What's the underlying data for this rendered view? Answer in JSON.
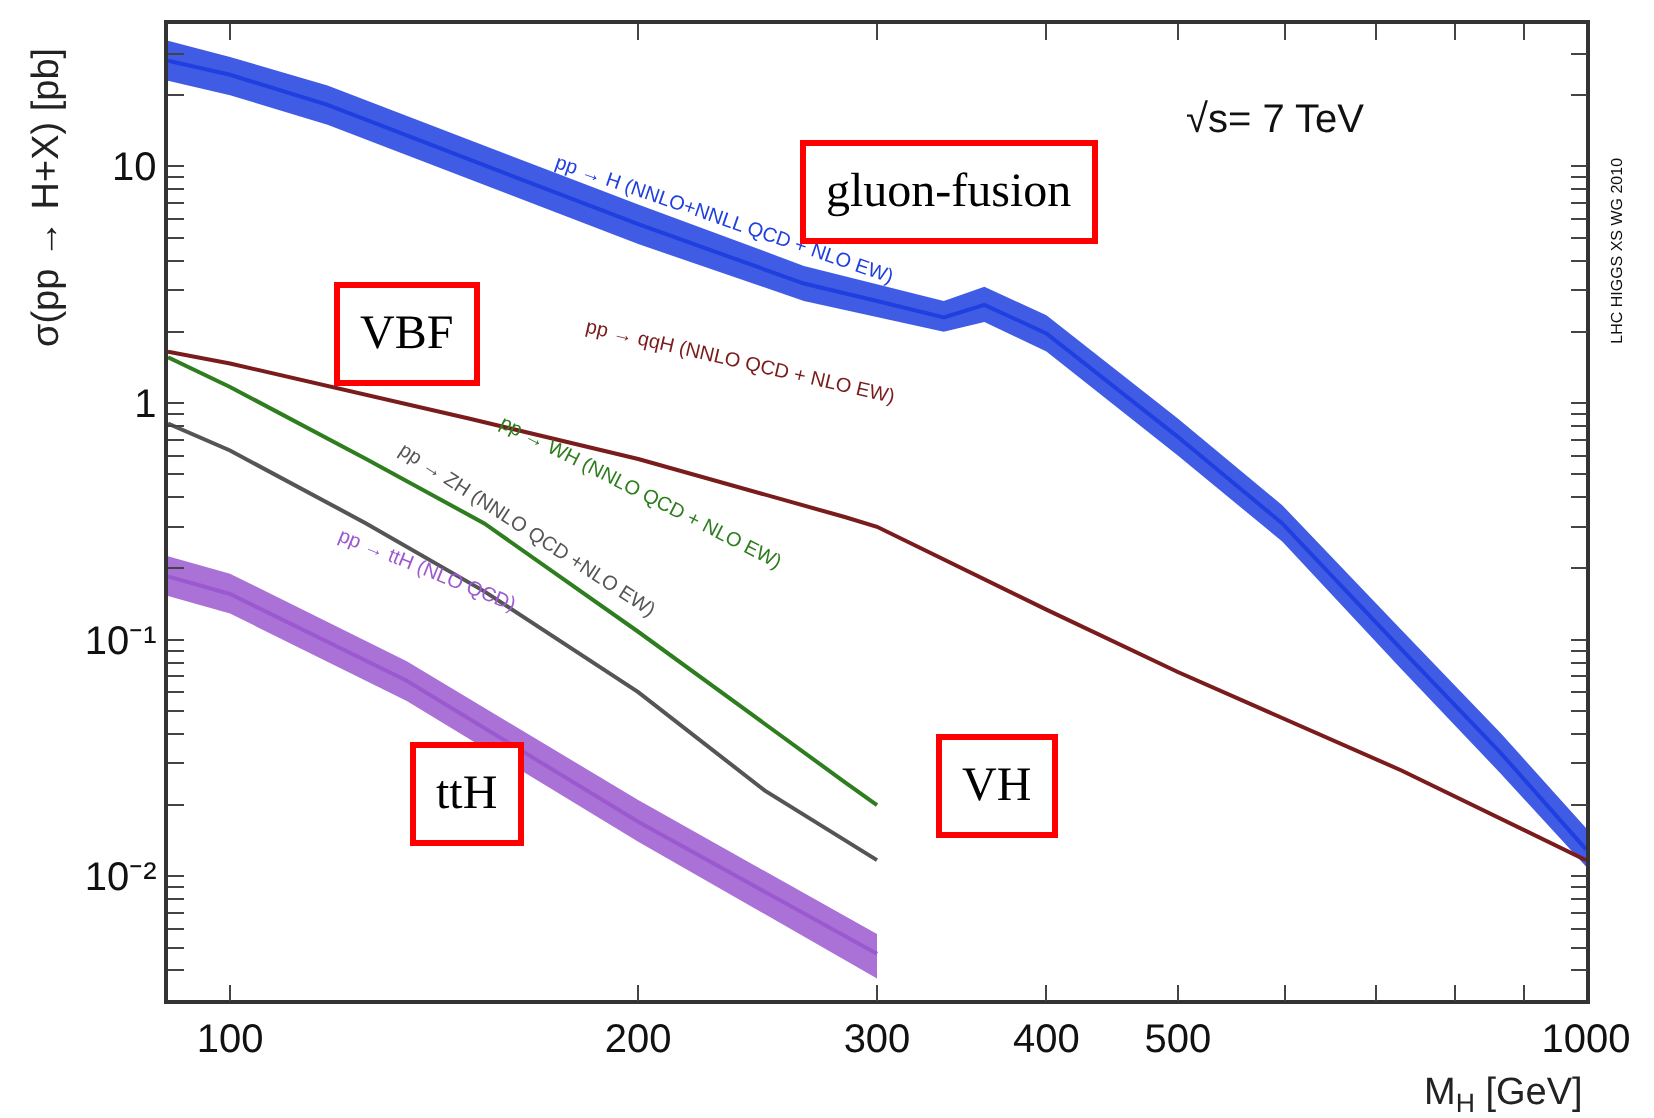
{
  "chart_data": {
    "type": "line",
    "xlabel": "M$_{H}$ [GeV]",
    "ylabel": "σ(pp → H+X) [pb]",
    "log": "xy",
    "legend": false,
    "marker": "none",
    "line_style": "solid",
    "xlim": [
      90,
      1000
    ],
    "ylim": [
      0.003,
      40
    ],
    "xticks": [
      100,
      200,
      300,
      400,
      500,
      {
        "value": 600,
        "label": null
      },
      {
        "value": 700,
        "label": null
      },
      {
        "value": 800,
        "label": null
      },
      {
        "value": 900,
        "label": null
      },
      1000
    ],
    "yticks": [
      {
        "value": 0.004,
        "label": null
      },
      {
        "value": 0.005,
        "label": null
      },
      {
        "value": 0.006,
        "label": null
      },
      {
        "value": 0.007,
        "label": null
      },
      {
        "value": 0.008,
        "label": null
      },
      {
        "value": 0.009,
        "label": null
      },
      {
        "value": 0.01,
        "label": "10⁻²"
      },
      {
        "value": 0.02,
        "label": null
      },
      {
        "value": 0.03,
        "label": null
      },
      {
        "value": 0.04,
        "label": null
      },
      {
        "value": 0.05,
        "label": null
      },
      {
        "value": 0.06,
        "label": null
      },
      {
        "value": 0.07,
        "label": null
      },
      {
        "value": 0.08,
        "label": null
      },
      {
        "value": 0.09,
        "label": null
      },
      {
        "value": 0.1,
        "label": "10⁻¹"
      },
      {
        "value": 0.2,
        "label": null
      },
      {
        "value": 0.3,
        "label": null
      },
      {
        "value": 0.4,
        "label": null
      },
      {
        "value": 0.5,
        "label": null
      },
      {
        "value": 0.6,
        "label": null
      },
      {
        "value": 0.7,
        "label": null
      },
      {
        "value": 0.8,
        "label": null
      },
      {
        "value": 0.9,
        "label": null
      },
      1,
      {
        "value": 2,
        "label": null
      },
      {
        "value": 3,
        "label": null
      },
      {
        "value": 4,
        "label": null
      },
      {
        "value": 5,
        "label": null
      },
      {
        "value": 6,
        "label": null
      },
      {
        "value": 7,
        "label": null
      },
      {
        "value": 8,
        "label": null
      },
      {
        "value": 9,
        "label": null
      },
      10,
      {
        "value": 20,
        "label": null
      },
      {
        "value": 30,
        "label": null
      },
      {
        "value": 40,
        "label": null
      }
    ],
    "series": [
      {
        "name": "pp → H (NNLO+NNLL QCD + NLO EW)",
        "color": "#1f3fe0",
        "x": [
          90,
          100,
          118,
          160,
          200,
          265,
          300,
          336,
          360,
          400,
          500,
          597,
          731,
          866,
          1000
        ],
        "values": [
          28,
          24.4,
          18.2,
          9.3,
          5.7,
          3.2,
          2.7,
          2.3,
          2.6,
          1.97,
          0.72,
          0.31,
          0.091,
          0.033,
          0.013
        ],
        "lower": [
          23,
          20,
          15,
          7.7,
          4.7,
          2.7,
          2.3,
          2.0,
          2.2,
          1.65,
          0.6,
          0.26,
          0.075,
          0.027,
          0.011
        ],
        "upper": [
          34,
          29,
          22,
          11.2,
          6.9,
          3.8,
          3.18,
          2.7,
          3.1,
          2.35,
          0.86,
          0.37,
          0.11,
          0.04,
          0.016
        ]
      },
      {
        "name": "pp → qqH (NNLO QCD + NLO EW)",
        "color": "#7a1c1c",
        "x": [
          90,
          100,
          150,
          200,
          284,
          300,
          400,
          500,
          731,
          1000
        ],
        "values": [
          1.65,
          1.47,
          0.86,
          0.58,
          0.33,
          0.3,
          0.134,
          0.073,
          0.028,
          0.0117
        ]
      },
      {
        "name": "pp → WH (NNLO QCD + NLO EW)",
        "color": "#2e7d1e",
        "x": [
          90,
          100,
          126,
          154,
          200,
          284,
          300
        ],
        "values": [
          1.56,
          1.17,
          0.58,
          0.31,
          0.108,
          0.025,
          0.02
        ]
      },
      {
        "name": "pp → ZH (NNLO QCD +NLO EW)",
        "color": "#555555",
        "x": [
          90,
          100,
          126,
          154,
          200,
          248,
          300
        ],
        "values": [
          0.82,
          0.63,
          0.31,
          0.16,
          0.06,
          0.023,
          0.0117
        ]
      },
      {
        "name": "pp → ttH (NLO QCD)",
        "color": "#9b59d0",
        "x": [
          90,
          100,
          135,
          200,
          300
        ],
        "values": [
          0.185,
          0.156,
          0.067,
          0.017,
          0.0047
        ],
        "lower": [
          0.153,
          0.129,
          0.055,
          0.014,
          0.0037
        ],
        "upper": [
          0.225,
          0.19,
          0.081,
          0.021,
          0.0057
        ]
      }
    ],
    "annotations": [
      "gluon-fusion",
      "VBF",
      "VH",
      "ttH",
      "√s= 7 TeV",
      "LHC HIGGS XS WG 2010"
    ]
  }
}
